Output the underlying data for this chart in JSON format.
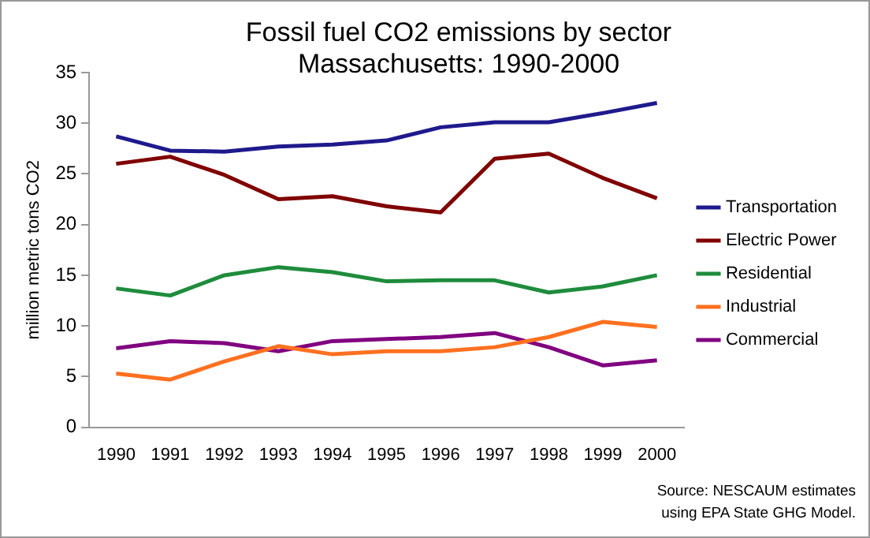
{
  "chart_data": {
    "type": "line",
    "title": "Fossil fuel CO2 emissions by sector Massachusetts: 1990-2000",
    "ylabel": "million metric tons CO2",
    "categories": [
      "1990",
      "1991",
      "1992",
      "1993",
      "1994",
      "1995",
      "1996",
      "1997",
      "1998",
      "1999",
      "2000"
    ],
    "series": [
      {
        "name": "Transportation",
        "color": "#1f1a8c",
        "values": [
          28.7,
          27.3,
          27.2,
          27.7,
          27.9,
          28.3,
          29.6,
          30.1,
          30.1,
          31.0,
          32.0
        ]
      },
      {
        "name": "Electric Power",
        "color": "#800000",
        "values": [
          26.0,
          26.7,
          24.9,
          22.5,
          22.8,
          21.8,
          21.2,
          26.5,
          27.0,
          24.6,
          22.6
        ]
      },
      {
        "name": "Residential",
        "color": "#1e8c3c",
        "values": [
          13.7,
          13.0,
          15.0,
          15.8,
          15.3,
          14.4,
          14.5,
          14.5,
          13.3,
          13.9,
          15.0
        ]
      },
      {
        "name": "Industrial",
        "color": "#ff7020",
        "values": [
          5.3,
          4.7,
          6.5,
          8.0,
          7.2,
          7.5,
          7.5,
          7.9,
          8.9,
          10.4,
          9.9
        ]
      },
      {
        "name": "Commercial",
        "color": "#800080",
        "values": [
          7.8,
          8.5,
          8.3,
          7.5,
          8.5,
          8.7,
          8.9,
          9.3,
          7.9,
          6.1,
          6.6
        ]
      }
    ],
    "ylim": [
      0,
      35
    ],
    "yticks": [
      0,
      5,
      10,
      15,
      20,
      25,
      30,
      35
    ],
    "grid": false,
    "legend": "right",
    "marker": "none",
    "line_style": "solid",
    "annotations": [
      "Source: NESCAUM estimates using EPA State GHG Model."
    ]
  }
}
